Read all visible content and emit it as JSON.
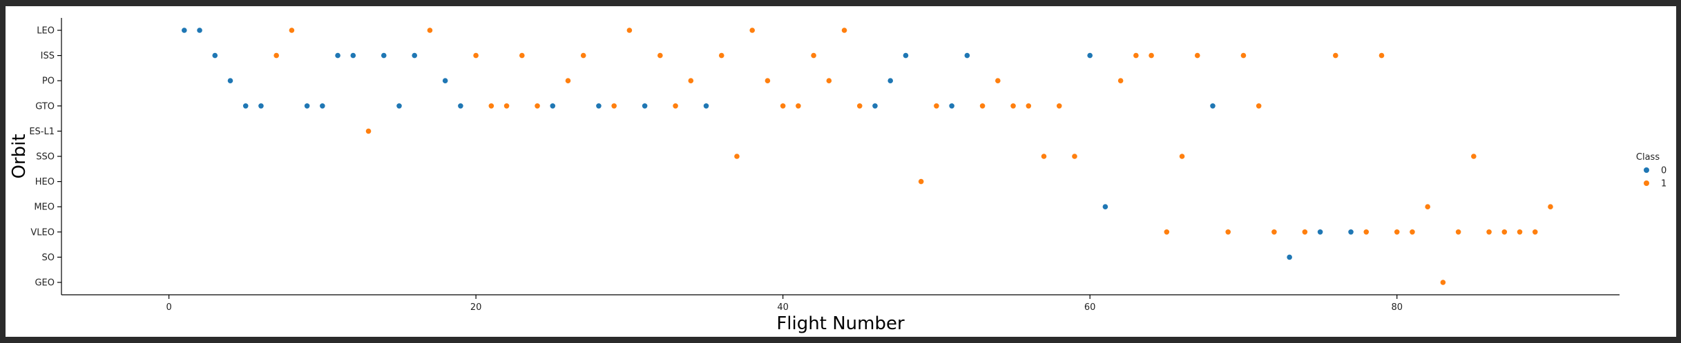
{
  "chart_data": {
    "type": "scatter",
    "title": "",
    "xlabel": "Flight Number",
    "ylabel": "Orbit",
    "xlim": [
      -7,
      94.5
    ],
    "x_ticks": [
      0,
      20,
      40,
      60,
      80
    ],
    "y_categories": [
      "LEO",
      "ISS",
      "PO",
      "GTO",
      "ES-L1",
      "SSO",
      "HEO",
      "MEO",
      "VLEO",
      "SO",
      "GEO"
    ],
    "grid": false,
    "legend_position": "right",
    "legend": {
      "title": "Class",
      "entries": [
        {
          "label": "0",
          "color": "#1f77b4"
        },
        {
          "label": "1",
          "color": "#ff7f0e"
        }
      ]
    },
    "series": [
      {
        "name": "0",
        "color": "#1f77b4",
        "points": [
          {
            "x": 1,
            "y": "LEO"
          },
          {
            "x": 2,
            "y": "LEO"
          },
          {
            "x": 3,
            "y": "ISS"
          },
          {
            "x": 4,
            "y": "PO"
          },
          {
            "x": 5,
            "y": "GTO"
          },
          {
            "x": 6,
            "y": "GTO"
          },
          {
            "x": 9,
            "y": "GTO"
          },
          {
            "x": 10,
            "y": "GTO"
          },
          {
            "x": 11,
            "y": "ISS"
          },
          {
            "x": 12,
            "y": "ISS"
          },
          {
            "x": 14,
            "y": "ISS"
          },
          {
            "x": 15,
            "y": "GTO"
          },
          {
            "x": 16,
            "y": "ISS"
          },
          {
            "x": 18,
            "y": "PO"
          },
          {
            "x": 19,
            "y": "GTO"
          },
          {
            "x": 25,
            "y": "GTO"
          },
          {
            "x": 28,
            "y": "GTO"
          },
          {
            "x": 31,
            "y": "GTO"
          },
          {
            "x": 35,
            "y": "GTO"
          },
          {
            "x": 46,
            "y": "GTO"
          },
          {
            "x": 47,
            "y": "PO"
          },
          {
            "x": 48,
            "y": "ISS"
          },
          {
            "x": 51,
            "y": "GTO"
          },
          {
            "x": 52,
            "y": "ISS"
          },
          {
            "x": 60,
            "y": "ISS"
          },
          {
            "x": 61,
            "y": "MEO"
          },
          {
            "x": 68,
            "y": "GTO"
          },
          {
            "x": 73,
            "y": "SO"
          },
          {
            "x": 75,
            "y": "VLEO"
          },
          {
            "x": 77,
            "y": "VLEO"
          }
        ]
      },
      {
        "name": "1",
        "color": "#ff7f0e",
        "points": [
          {
            "x": 7,
            "y": "ISS"
          },
          {
            "x": 8,
            "y": "LEO"
          },
          {
            "x": 13,
            "y": "ES-L1"
          },
          {
            "x": 17,
            "y": "LEO"
          },
          {
            "x": 20,
            "y": "ISS"
          },
          {
            "x": 21,
            "y": "GTO"
          },
          {
            "x": 22,
            "y": "GTO"
          },
          {
            "x": 23,
            "y": "ISS"
          },
          {
            "x": 24,
            "y": "GTO"
          },
          {
            "x": 26,
            "y": "PO"
          },
          {
            "x": 27,
            "y": "ISS"
          },
          {
            "x": 29,
            "y": "GTO"
          },
          {
            "x": 30,
            "y": "LEO"
          },
          {
            "x": 32,
            "y": "ISS"
          },
          {
            "x": 33,
            "y": "GTO"
          },
          {
            "x": 34,
            "y": "PO"
          },
          {
            "x": 36,
            "y": "ISS"
          },
          {
            "x": 37,
            "y": "SSO"
          },
          {
            "x": 38,
            "y": "LEO"
          },
          {
            "x": 39,
            "y": "PO"
          },
          {
            "x": 40,
            "y": "GTO"
          },
          {
            "x": 41,
            "y": "GTO"
          },
          {
            "x": 42,
            "y": "ISS"
          },
          {
            "x": 43,
            "y": "PO"
          },
          {
            "x": 44,
            "y": "LEO"
          },
          {
            "x": 45,
            "y": "GTO"
          },
          {
            "x": 49,
            "y": "HEO"
          },
          {
            "x": 50,
            "y": "GTO"
          },
          {
            "x": 53,
            "y": "GTO"
          },
          {
            "x": 54,
            "y": "PO"
          },
          {
            "x": 55,
            "y": "GTO"
          },
          {
            "x": 56,
            "y": "GTO"
          },
          {
            "x": 57,
            "y": "SSO"
          },
          {
            "x": 58,
            "y": "GTO"
          },
          {
            "x": 59,
            "y": "SSO"
          },
          {
            "x": 62,
            "y": "PO"
          },
          {
            "x": 63,
            "y": "ISS"
          },
          {
            "x": 64,
            "y": "ISS"
          },
          {
            "x": 65,
            "y": "VLEO"
          },
          {
            "x": 66,
            "y": "SSO"
          },
          {
            "x": 67,
            "y": "ISS"
          },
          {
            "x": 69,
            "y": "VLEO"
          },
          {
            "x": 70,
            "y": "ISS"
          },
          {
            "x": 71,
            "y": "GTO"
          },
          {
            "x": 72,
            "y": "VLEO"
          },
          {
            "x": 74,
            "y": "VLEO"
          },
          {
            "x": 76,
            "y": "ISS"
          },
          {
            "x": 78,
            "y": "VLEO"
          },
          {
            "x": 79,
            "y": "ISS"
          },
          {
            "x": 80,
            "y": "VLEO"
          },
          {
            "x": 81,
            "y": "VLEO"
          },
          {
            "x": 82,
            "y": "MEO"
          },
          {
            "x": 83,
            "y": "GEO"
          },
          {
            "x": 84,
            "y": "VLEO"
          },
          {
            "x": 85,
            "y": "SSO"
          },
          {
            "x": 86,
            "y": "VLEO"
          },
          {
            "x": 87,
            "y": "VLEO"
          },
          {
            "x": 88,
            "y": "VLEO"
          },
          {
            "x": 89,
            "y": "VLEO"
          },
          {
            "x": 90,
            "y": "MEO"
          }
        ]
      }
    ]
  }
}
